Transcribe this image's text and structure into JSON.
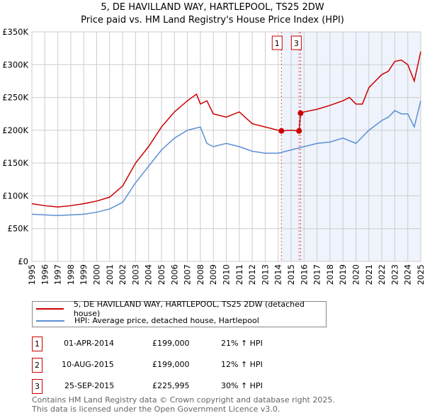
{
  "chart_data": {
    "type": "line",
    "title": "5, DE HAVILLAND WAY, HARTLEPOOL, TS25 2DW",
    "subtitle": "Price paid vs. HM Land Registry's House Price Index (HPI)",
    "xlim": [
      1995,
      2025
    ],
    "ylim": [
      0,
      350000
    ],
    "x_ticks": [
      "1995",
      "1996",
      "1997",
      "1998",
      "1999",
      "2000",
      "2001",
      "2002",
      "2003",
      "2004",
      "2005",
      "2006",
      "2007",
      "2008",
      "2009",
      "2010",
      "2011",
      "2012",
      "2013",
      "2014",
      "2015",
      "2016",
      "2017",
      "2018",
      "2019",
      "2020",
      "2021",
      "2022",
      "2023",
      "2024",
      "2025"
    ],
    "y_ticks": [
      {
        "v": 0,
        "l": "£0"
      },
      {
        "v": 50000,
        "l": "£50K"
      },
      {
        "v": 100000,
        "l": "£100K"
      },
      {
        "v": 150000,
        "l": "£150K"
      },
      {
        "v": 200000,
        "l": "£200K"
      },
      {
        "v": 250000,
        "l": "£250K"
      },
      {
        "v": 300000,
        "l": "£300K"
      },
      {
        "v": 350000,
        "l": "£350K"
      }
    ],
    "grid": true,
    "series": [
      {
        "name": "5, DE HAVILLAND WAY, HARTLEPOOL, TS25 2DW (detached house)",
        "color": "#cc0000",
        "x": [
          1995,
          1996,
          1997,
          1998,
          1999,
          2000,
          2001,
          2002,
          2003,
          2004,
          2005,
          2006,
          2007,
          2007.7,
          2008,
          2008.5,
          2009,
          2010,
          2011,
          2012,
          2013,
          2014,
          2014.25,
          2015,
          2015.61,
          2015.73,
          2016,
          2017,
          2018,
          2019,
          2019.5,
          2020,
          2020.5,
          2021,
          2022,
          2022.5,
          2023,
          2023.5,
          2024,
          2024.5,
          2025
        ],
        "y": [
          88000,
          85000,
          83000,
          85000,
          88000,
          92000,
          98000,
          115000,
          150000,
          175000,
          205000,
          228000,
          245000,
          255000,
          240000,
          245000,
          225000,
          220000,
          228000,
          210000,
          205000,
          200000,
          199000,
          200000,
          199000,
          225995,
          228000,
          232000,
          238000,
          245000,
          250000,
          240000,
          240000,
          265000,
          285000,
          290000,
          305000,
          307000,
          300000,
          275000,
          320000
        ]
      },
      {
        "name": "HPI: Average price, detached house, Hartlepool",
        "color": "#5b8fd4",
        "x": [
          1995,
          1997,
          1999,
          2000,
          2001,
          2002,
          2003,
          2004,
          2005,
          2006,
          2007,
          2008,
          2008.5,
          2009,
          2010,
          2011,
          2012,
          2013,
          2014,
          2015,
          2016,
          2017,
          2018,
          2019,
          2020,
          2021,
          2022,
          2022.5,
          2023,
          2023.5,
          2024,
          2024.5,
          2025
        ],
        "y": [
          72000,
          70000,
          72000,
          75000,
          80000,
          90000,
          120000,
          145000,
          170000,
          188000,
          200000,
          205000,
          180000,
          175000,
          180000,
          175000,
          168000,
          165000,
          165000,
          170000,
          175000,
          180000,
          182000,
          188000,
          180000,
          200000,
          215000,
          220000,
          230000,
          225000,
          225000,
          205000,
          245000
        ]
      }
    ],
    "sales": [
      {
        "id": "1",
        "x": 2014.25,
        "y": 199000,
        "label_shown": true
      },
      {
        "id": "2",
        "x": 2015.61,
        "y": 199000,
        "label_shown": false
      },
      {
        "id": "3",
        "x": 2015.73,
        "y": 225995,
        "label_shown": true
      }
    ],
    "shaded_from": 2014.25,
    "legend_placement": "below"
  },
  "transactions": [
    {
      "num": "1",
      "date": "01-APR-2014",
      "price": "£199,000",
      "hpi": "21% ↑ HPI"
    },
    {
      "num": "2",
      "date": "10-AUG-2015",
      "price": "£199,000",
      "hpi": "12% ↑ HPI"
    },
    {
      "num": "3",
      "date": "25-SEP-2015",
      "price": "£225,995",
      "hpi": "30% ↑ HPI"
    }
  ],
  "footer": [
    "Contains HM Land Registry data © Crown copyright and database right 2025.",
    "This data is licensed under the Open Government Licence v3.0."
  ]
}
